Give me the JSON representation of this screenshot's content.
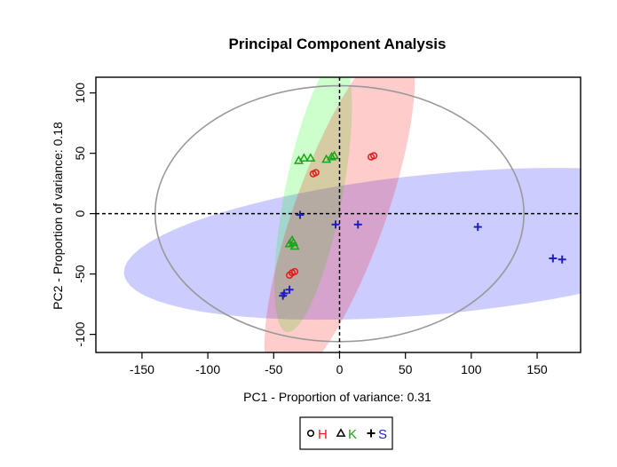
{
  "chart_data": {
    "type": "scatter",
    "title": "Principal Component Analysis",
    "xlabel": "PC1  -  Proportion of variance: 0.31",
    "ylabel": "PC2  -  Proportion of variance: 0.18",
    "xlim": [
      -185,
      183
    ],
    "ylim": [
      -115,
      113
    ],
    "xticks": [
      -150,
      -100,
      -50,
      0,
      50,
      100,
      150
    ],
    "yticks": [
      -100,
      -50,
      0,
      50,
      100
    ],
    "grid": false,
    "reference_lines": {
      "x": 0,
      "y": 0,
      "style": "dashed"
    },
    "legend": {
      "position": "bottom-center"
    },
    "series": [
      {
        "name": "H",
        "color": "#e41a1c",
        "marker": "circle",
        "points": [
          [
            -20,
            33
          ],
          [
            -18,
            34
          ],
          [
            24,
            47
          ],
          [
            26,
            48
          ],
          [
            -38,
            -51
          ],
          [
            -36,
            -49
          ],
          [
            -34,
            -48
          ]
        ],
        "ellipse": {
          "cx": 0,
          "cy": 0,
          "rx": 150,
          "ry": 35,
          "angle_deg": 72,
          "fill": "#ff000033"
        }
      },
      {
        "name": "K",
        "color": "#1aa41a",
        "marker": "triangle",
        "points": [
          [
            -31,
            44
          ],
          [
            -27,
            46
          ],
          [
            -22,
            46
          ],
          [
            -10,
            45
          ],
          [
            -6,
            47
          ],
          [
            -4,
            48
          ],
          [
            -38,
            -25
          ],
          [
            -35,
            -24
          ],
          [
            -34,
            -27
          ],
          [
            -36,
            -22
          ]
        ],
        "ellipse": {
          "cx": -20,
          "cy": 15,
          "rx": 115,
          "ry": 22,
          "angle_deg": 80,
          "fill": "#00ff0033"
        }
      },
      {
        "name": "S",
        "color": "#1f1fbf",
        "marker": "plus",
        "points": [
          [
            -30,
            -1
          ],
          [
            -3,
            -9
          ],
          [
            14,
            -9
          ],
          [
            105,
            -11
          ],
          [
            162,
            -37
          ],
          [
            169,
            -38
          ],
          [
            -38,
            -63
          ],
          [
            -42,
            -66
          ],
          [
            -43,
            -68
          ]
        ],
        "ellipse": {
          "cx": 75,
          "cy": -25,
          "rx": 240,
          "ry": 58,
          "angle_deg": 6,
          "fill": "#0000ff33"
        }
      }
    ],
    "overall_ellipse": {
      "cx": 0,
      "cy": 0,
      "rx": 140,
      "ry": 106,
      "stroke": "#999999"
    }
  }
}
